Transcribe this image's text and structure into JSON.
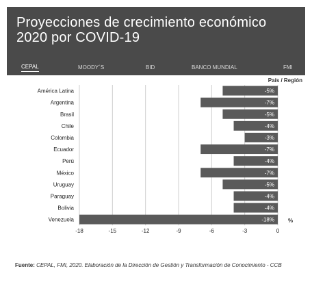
{
  "header": {
    "title": "Proyecciones de crecimiento económico 2020 por COVID-19"
  },
  "tabs": [
    {
      "label": "CEPAL",
      "active": true
    },
    {
      "label": "MOODY´S",
      "active": false
    },
    {
      "label": "BID",
      "active": false
    },
    {
      "label": "BANCO MUNDIAL",
      "active": false
    },
    {
      "label": "FMI",
      "active": false
    }
  ],
  "footer": {
    "source_label": "Fuente:",
    "source_text": "CEPAL, FMI, 2020. Elaboración de la Dirección de Gestión y Transformación de Conocimiento - CCB"
  },
  "colors": {
    "header_bg": "#4a4a4a",
    "bar": "#5a5a5a",
    "bar_label": "#ffffff",
    "grid": "#cfcfcf"
  },
  "chart_data": {
    "type": "bar",
    "orientation": "horizontal",
    "legend_title": "País / Región",
    "categories": [
      "América Latina",
      "Argentina",
      "Brasil",
      "Chile",
      "Colombia",
      "Ecuador",
      "Perú",
      "México",
      "Uruguay",
      "Paraguay",
      "Bolivia",
      "Venezuela"
    ],
    "values": [
      -5,
      -7,
      -5,
      -4,
      -3,
      -7,
      -4,
      -7,
      -5,
      -4,
      -4,
      -18
    ],
    "value_labels": [
      "-5%",
      "-7%",
      "-5%",
      "-4%",
      "-3%",
      "-7%",
      "-4%",
      "-7%",
      "-5%",
      "-4%",
      "-4%",
      "-18%"
    ],
    "x_ticks": [
      -18,
      -15,
      -12,
      -9,
      -6,
      -3,
      0
    ],
    "xlim": [
      -18,
      0
    ],
    "x_unit": "%",
    "grid": true
  }
}
